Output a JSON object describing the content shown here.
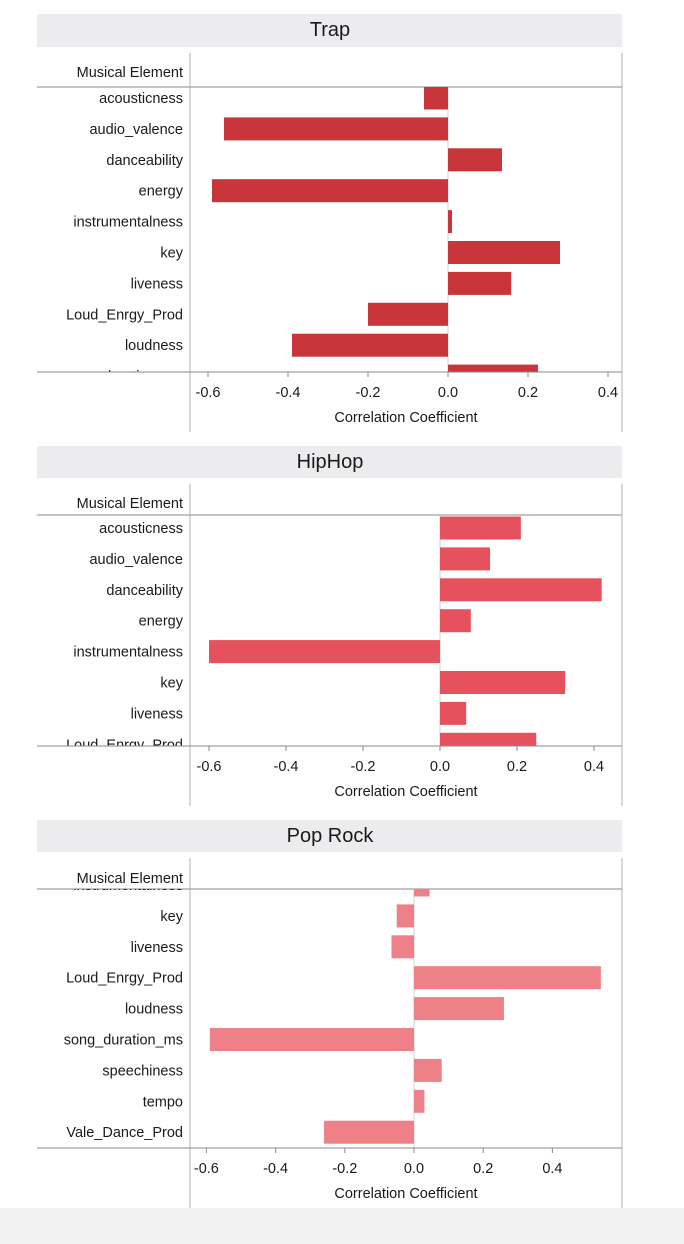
{
  "chart_data": [
    {
      "type": "bar",
      "orientation": "horizontal",
      "title": "Trap",
      "row_header": "Musical Element",
      "xlabel": "Correlation Coefficient",
      "xlim": [
        -0.62,
        0.42
      ],
      "xticks": [
        -0.6,
        -0.4,
        -0.2,
        0.0,
        0.2,
        0.4
      ],
      "xtick_labels": [
        "-0.6",
        "-0.4",
        "-0.2",
        "0.0",
        "0.2",
        "0.4"
      ],
      "color": "#c8363b",
      "categories": [
        "acousticness",
        "audio_valence",
        "danceability",
        "energy",
        "instrumentalness",
        "key",
        "liveness",
        "Loud_Enrgy_Prod",
        "loudness",
        "song_duration_ms"
      ],
      "values": [
        -0.06,
        -0.56,
        0.135,
        -0.59,
        0.01,
        0.28,
        0.158,
        -0.2,
        -0.39,
        0.225
      ],
      "last_row_cut_off": true
    },
    {
      "type": "bar",
      "orientation": "horizontal",
      "title": "HipHop",
      "row_header": "Musical Element",
      "xlabel": "Correlation Coefficient",
      "xlim": [
        -0.62,
        0.44
      ],
      "xticks": [
        -0.6,
        -0.4,
        -0.2,
        0.0,
        0.2,
        0.4
      ],
      "xtick_labels": [
        "-0.6",
        "-0.4",
        "-0.2",
        "0.0",
        "0.2",
        "0.4"
      ],
      "color": "#e5525e",
      "categories": [
        "acousticness",
        "audio_valence",
        "danceability",
        "energy",
        "instrumentalness",
        "key",
        "liveness",
        "Loud_Enrgy_Prod"
      ],
      "values": [
        0.21,
        0.13,
        0.42,
        0.08,
        -0.6,
        0.325,
        0.068,
        0.25
      ],
      "last_row_cut_off": true
    },
    {
      "type": "bar",
      "orientation": "horizontal",
      "title": "Pop Rock",
      "row_header": "Musical Element",
      "xlabel": "Correlation Coefficient",
      "xlim": [
        -0.62,
        0.6
      ],
      "xticks": [
        -0.6,
        -0.4,
        -0.2,
        0.0,
        0.2,
        0.4
      ],
      "xtick_labels": [
        "-0.6",
        "-0.4",
        "-0.2",
        "0.0",
        "0.2",
        "0.4"
      ],
      "color": "#ee8088",
      "categories": [
        "instrumentalness",
        "key",
        "liveness",
        "Loud_Enrgy_Prod",
        "loudness",
        "song_duration_ms",
        "speechiness",
        "tempo",
        "Vale_Dance_Prod"
      ],
      "values": [
        0.045,
        -0.05,
        -0.065,
        0.54,
        0.26,
        -0.59,
        0.08,
        0.03,
        -0.26
      ],
      "first_row_cut_off": true
    }
  ]
}
